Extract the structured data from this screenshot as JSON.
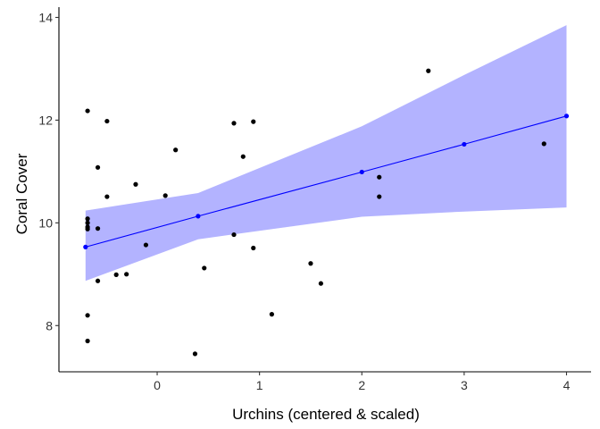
{
  "chart_data": {
    "type": "scatter",
    "title": "",
    "xlabel": "Urchins (centered & scaled)",
    "ylabel": "Coral Cover",
    "xlim": [
      -0.96,
      4.24
    ],
    "ylim": [
      7.1,
      14.2
    ],
    "x_ticks": [
      0,
      1,
      2,
      3,
      4
    ],
    "y_ticks": [
      8,
      10,
      12,
      14
    ],
    "grid": false,
    "legend": "none",
    "points": [
      {
        "x": -0.68,
        "y": 12.18
      },
      {
        "x": -0.68,
        "y": 10.08
      },
      {
        "x": -0.68,
        "y": 10.0
      },
      {
        "x": -0.68,
        "y": 9.92
      },
      {
        "x": -0.68,
        "y": 9.88
      },
      {
        "x": -0.68,
        "y": 8.2
      },
      {
        "x": -0.68,
        "y": 7.7
      },
      {
        "x": -0.58,
        "y": 11.08
      },
      {
        "x": -0.58,
        "y": 9.89
      },
      {
        "x": -0.58,
        "y": 8.87
      },
      {
        "x": -0.49,
        "y": 11.98
      },
      {
        "x": -0.49,
        "y": 10.51
      },
      {
        "x": -0.4,
        "y": 8.99
      },
      {
        "x": -0.3,
        "y": 9.0
      },
      {
        "x": -0.21,
        "y": 10.75
      },
      {
        "x": -0.11,
        "y": 9.57
      },
      {
        "x": 0.08,
        "y": 10.53
      },
      {
        "x": 0.18,
        "y": 11.42
      },
      {
        "x": 0.37,
        "y": 7.45
      },
      {
        "x": 0.46,
        "y": 9.12
      },
      {
        "x": 0.75,
        "y": 11.94
      },
      {
        "x": 0.75,
        "y": 9.77
      },
      {
        "x": 0.84,
        "y": 11.29
      },
      {
        "x": 0.94,
        "y": 11.97
      },
      {
        "x": 0.94,
        "y": 9.51
      },
      {
        "x": 1.12,
        "y": 8.22
      },
      {
        "x": 1.5,
        "y": 9.21
      },
      {
        "x": 1.6,
        "y": 8.82
      },
      {
        "x": 2.17,
        "y": 10.89
      },
      {
        "x": 2.17,
        "y": 10.51
      },
      {
        "x": 2.65,
        "y": 12.96
      },
      {
        "x": 3.78,
        "y": 11.54
      }
    ],
    "fit": {
      "x": [
        -0.7,
        0.4,
        2.0,
        3.0,
        4.0
      ],
      "y": [
        9.53,
        10.13,
        10.99,
        11.53,
        12.08
      ],
      "lower": [
        8.87,
        9.68,
        10.12,
        10.22,
        10.3
      ],
      "upper": [
        10.24,
        10.58,
        11.88,
        12.88,
        13.85
      ]
    },
    "colors": {
      "points": "#000000",
      "fit_line": "#0000ff",
      "ribbon": "#b3b3ff",
      "axis": "#000000"
    }
  }
}
